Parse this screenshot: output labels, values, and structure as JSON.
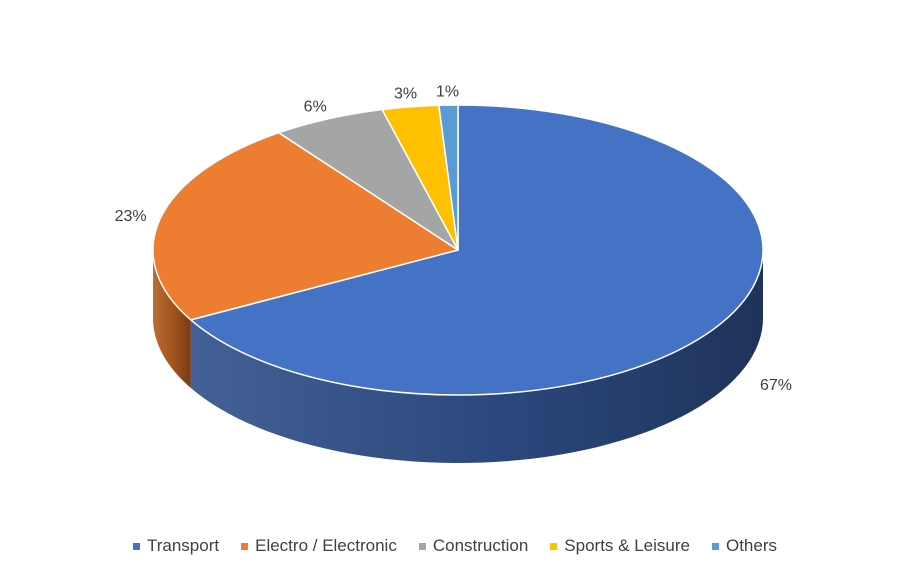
{
  "chart_data": {
    "type": "pie",
    "style": "3d",
    "categories": [
      "Transport",
      "Electro / Electronic",
      "Construction",
      "Sports & Leisure",
      "Others"
    ],
    "values": [
      67,
      23,
      6,
      3,
      1
    ],
    "data_labels": [
      "67%",
      "23%",
      "6%",
      "3%",
      "1%"
    ],
    "colors": [
      "#4472C4",
      "#ED7D31",
      "#A5A5A5",
      "#FFC000",
      "#5B9BD5"
    ],
    "side_colors": [
      "#2F4F8A",
      "#B35C1F",
      "#7A7A7A",
      "#BF9000",
      "#3F73A3"
    ],
    "legend_position": "bottom",
    "start_angle_deg": 0,
    "direction": "clockwise"
  }
}
